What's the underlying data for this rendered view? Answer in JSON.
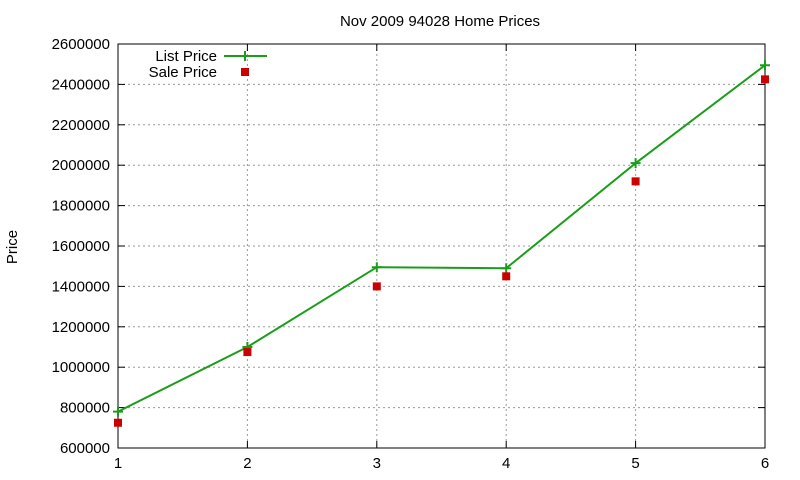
{
  "chart_data": {
    "type": "line",
    "title": "Nov 2009 94028 Home Prices",
    "xlabel": "",
    "ylabel": "Price",
    "xlim": [
      1,
      6
    ],
    "ylim": [
      600000,
      2600000
    ],
    "x_ticks": [
      "1",
      "2",
      "3",
      "4",
      "5",
      "6"
    ],
    "y_ticks": [
      "600000",
      "800000",
      "1000000",
      "1200000",
      "1400000",
      "1600000",
      "1800000",
      "2000000",
      "2200000",
      "2400000",
      "2600000"
    ],
    "grid": true,
    "legend_position": "top-left",
    "series": [
      {
        "name": "List Price",
        "style": "line-with-plus-markers",
        "color": "#1a9e1a",
        "x": [
          1,
          2,
          3,
          4,
          5,
          6
        ],
        "values": [
          780000,
          1100000,
          1495000,
          1490000,
          2010000,
          2495000
        ]
      },
      {
        "name": "Sale Price",
        "style": "square-markers",
        "color": "#cc0000",
        "x": [
          1,
          2,
          3,
          4,
          5,
          6
        ],
        "values": [
          725000,
          1075000,
          1400000,
          1450000,
          1920000,
          2425000
        ]
      }
    ]
  }
}
